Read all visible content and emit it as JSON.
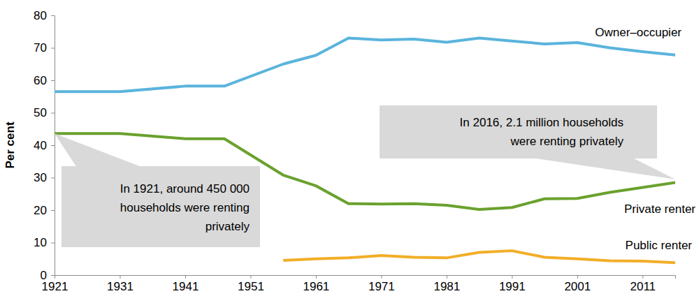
{
  "chart_data": {
    "type": "line",
    "y_label": "Per cent",
    "x": [
      1921,
      1931,
      1941,
      1947,
      1956,
      1961,
      1966,
      1971,
      1976,
      1981,
      1986,
      1991,
      1996,
      2001,
      2006,
      2011,
      2016
    ],
    "series": [
      {
        "name": "Owner–occupier",
        "color": "#5ab4dc",
        "values": [
          56.5,
          56.5,
          58.2,
          58.2,
          65,
          67.7,
          73,
          72.4,
          72.7,
          71.7,
          73,
          72.1,
          71.2,
          71.6,
          70,
          68.8,
          67.8
        ]
      },
      {
        "name": "Private renter",
        "color": "#6aa12e",
        "values": [
          43.6,
          43.6,
          42,
          42,
          30.8,
          27.5,
          22,
          21.9,
          22,
          21.5,
          20.2,
          20.8,
          23.5,
          23.6,
          25.5,
          27,
          28.5
        ]
      },
      {
        "name": "Public renter",
        "color": "#f2ae27",
        "values": [
          null,
          null,
          null,
          null,
          4.5,
          5,
          5.3,
          6,
          5.5,
          5.3,
          7,
          7.5,
          5.5,
          5,
          4.4,
          4.3,
          3.8
        ]
      }
    ],
    "xlim": [
      1921,
      2016
    ],
    "xticks": [
      1921,
      1931,
      1941,
      1951,
      1961,
      1971,
      1981,
      1991,
      2001,
      2011
    ],
    "ylim": [
      0,
      80
    ],
    "yticks": [
      0,
      10,
      20,
      30,
      40,
      50,
      60,
      70,
      80
    ],
    "grid": false,
    "annotations": [
      {
        "text": [
          "In 1921, around 450 000",
          "households were renting",
          "privately"
        ],
        "x": 1921,
        "y": 43.6
      },
      {
        "text": [
          "In 2016, 2.1 million households",
          "were renting privately"
        ],
        "x": 2016,
        "y": 29.5
      }
    ]
  }
}
